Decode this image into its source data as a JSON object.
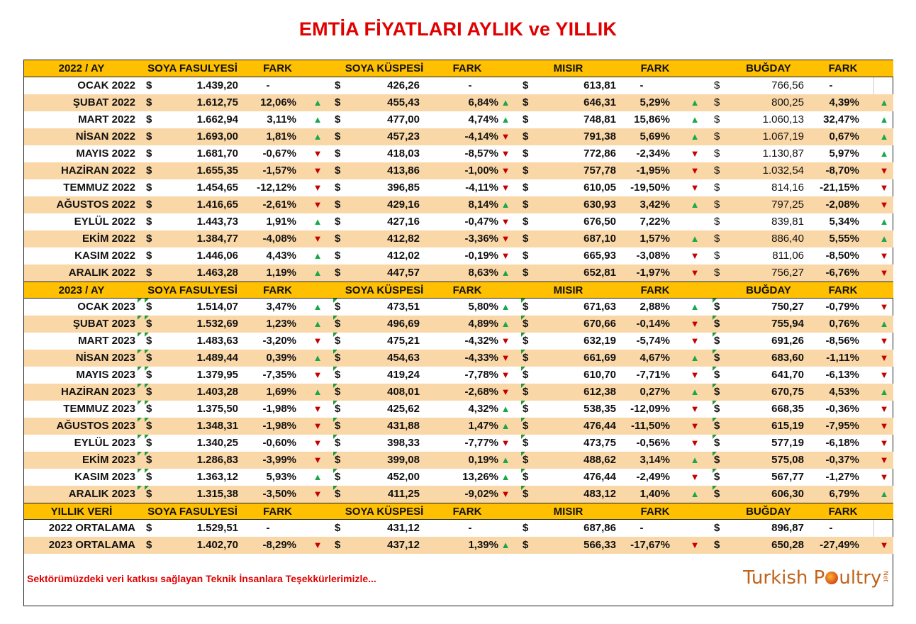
{
  "title": "EMTİA FİYATLARI AYLIK ve YILLIK",
  "headers_2022": [
    "2022 / AY",
    "SOYA FASULYESİ",
    "FARK",
    "SOYA KÜSPESİ",
    "FARK",
    "MISIR",
    "FARK",
    "BUĞDAY",
    "FARK"
  ],
  "headers_2023": [
    "2023 / AY",
    "SOYA FASULYESİ",
    "FARK",
    "SOYA KÜSPESİ",
    "FARK",
    "MISIR",
    "FARK",
    "BUĞDAY",
    "FARK"
  ],
  "headers_yearly": [
    "YILLIK VERİ",
    "SOYA FASULYESİ",
    "FARK",
    "SOYA KÜSPESİ",
    "FARK",
    "MISIR",
    "FARK",
    "BUĞDAY",
    "FARK"
  ],
  "currency_symbol": "$",
  "rows_2022": [
    {
      "month": "OCAK 2022",
      "sf": "1.439,20",
      "sf_d": "-",
      "sf_a": "",
      "sk": "426,26",
      "sk_d": "-",
      "sk_a": "",
      "m": "613,81",
      "m_d": "-",
      "m_a": "",
      "b": "766,56",
      "b_d": "-",
      "b_a": ""
    },
    {
      "month": "ŞUBAT 2022",
      "sf": "1.612,75",
      "sf_d": "12,06%",
      "sf_a": "up",
      "sk": "455,43",
      "sk_d": "6,84%",
      "sk_a": "up",
      "m": "646,31",
      "m_d": "5,29%",
      "m_a": "up",
      "b": "800,25",
      "b_d": "4,39%",
      "b_a": "up"
    },
    {
      "month": "MART 2022",
      "sf": "1.662,94",
      "sf_d": "3,11%",
      "sf_a": "up",
      "sk": "477,00",
      "sk_d": "4,74%",
      "sk_a": "up",
      "m": "748,81",
      "m_d": "15,86%",
      "m_a": "up",
      "b": "1.060,13",
      "b_d": "32,47%",
      "b_a": "up"
    },
    {
      "month": "NİSAN 2022",
      "sf": "1.693,00",
      "sf_d": "1,81%",
      "sf_a": "up",
      "sk": "457,23",
      "sk_d": "-4,14%",
      "sk_a": "down",
      "m": "791,38",
      "m_d": "5,69%",
      "m_a": "up",
      "b": "1.067,19",
      "b_d": "0,67%",
      "b_a": "up"
    },
    {
      "month": "MAYIS 2022",
      "sf": "1.681,70",
      "sf_d": "-0,67%",
      "sf_a": "down",
      "sk": "418,03",
      "sk_d": "-8,57%",
      "sk_a": "down",
      "m": "772,86",
      "m_d": "-2,34%",
      "m_a": "down",
      "b": "1.130,87",
      "b_d": "5,97%",
      "b_a": "up"
    },
    {
      "month": "HAZİRAN 2022",
      "sf": "1.655,35",
      "sf_d": "-1,57%",
      "sf_a": "down",
      "sk": "413,86",
      "sk_d": "-1,00%",
      "sk_a": "down",
      "m": "757,78",
      "m_d": "-1,95%",
      "m_a": "down",
      "b": "1.032,54",
      "b_d": "-8,70%",
      "b_a": "down"
    },
    {
      "month": "TEMMUZ 2022",
      "sf": "1.454,65",
      "sf_d": "-12,12%",
      "sf_a": "down",
      "sk": "396,85",
      "sk_d": "-4,11%",
      "sk_a": "down",
      "m": "610,05",
      "m_d": "-19,50%",
      "m_a": "down",
      "b": "814,16",
      "b_d": "-21,15%",
      "b_a": "down"
    },
    {
      "month": "AĞUSTOS 2022",
      "sf": "1.416,65",
      "sf_d": "-2,61%",
      "sf_a": "down",
      "sk": "429,16",
      "sk_d": "8,14%",
      "sk_a": "up",
      "m": "630,93",
      "m_d": "3,42%",
      "m_a": "up",
      "b": "797,25",
      "b_d": "-2,08%",
      "b_a": "down"
    },
    {
      "month": "EYLÜL 2022",
      "sf": "1.443,73",
      "sf_d": "1,91%",
      "sf_a": "up",
      "sk": "427,16",
      "sk_d": "-0,47%",
      "sk_a": "down",
      "m": "676,50",
      "m_d": "7,22%",
      "m_a": "",
      "b": "839,81",
      "b_d": "5,34%",
      "b_a": "up"
    },
    {
      "month": "EKİM 2022",
      "sf": "1.384,77",
      "sf_d": "-4,08%",
      "sf_a": "down",
      "sk": "412,82",
      "sk_d": "-3,36%",
      "sk_a": "down",
      "m": "687,10",
      "m_d": "1,57%",
      "m_a": "up",
      "b": "886,40",
      "b_d": "5,55%",
      "b_a": "up"
    },
    {
      "month": "KASIM 2022",
      "sf": "1.446,06",
      "sf_d": "4,43%",
      "sf_a": "up",
      "sk": "412,02",
      "sk_d": "-0,19%",
      "sk_a": "down",
      "m": "665,93",
      "m_d": "-3,08%",
      "m_a": "down",
      "b": "811,06",
      "b_d": "-8,50%",
      "b_a": "down"
    },
    {
      "month": "ARALIK 2022",
      "sf": "1.463,28",
      "sf_d": "1,19%",
      "sf_a": "up",
      "sk": "447,57",
      "sk_d": "8,63%",
      "sk_a": "up",
      "m": "652,81",
      "m_d": "-1,97%",
      "m_a": "down",
      "b": "756,27",
      "b_d": "-6,76%",
      "b_a": "down"
    }
  ],
  "rows_2023": [
    {
      "month": "OCAK 2023",
      "sf": "1.514,07",
      "sf_d": "3,47%",
      "sf_a": "up",
      "sk": "473,51",
      "sk_d": "5,80%",
      "sk_a": "up",
      "m": "671,63",
      "m_d": "2,88%",
      "m_a": "up",
      "b": "750,27",
      "b_d": "-0,79%",
      "b_a": "down"
    },
    {
      "month": "ŞUBAT 2023",
      "sf": "1.532,69",
      "sf_d": "1,23%",
      "sf_a": "up",
      "sk": "496,69",
      "sk_d": "4,89%",
      "sk_a": "up",
      "m": "670,66",
      "m_d": "-0,14%",
      "m_a": "down",
      "b": "755,94",
      "b_d": "0,76%",
      "b_a": "up"
    },
    {
      "month": "MART 2023",
      "sf": "1.483,63",
      "sf_d": "-3,20%",
      "sf_a": "down",
      "sk": "475,21",
      "sk_d": "-4,32%",
      "sk_a": "down",
      "m": "632,19",
      "m_d": "-5,74%",
      "m_a": "down",
      "b": "691,26",
      "b_d": "-8,56%",
      "b_a": "down"
    },
    {
      "month": "NİSAN 2023",
      "sf": "1.489,44",
      "sf_d": "0,39%",
      "sf_a": "up",
      "sk": "454,63",
      "sk_d": "-4,33%",
      "sk_a": "down",
      "m": "661,69",
      "m_d": "4,67%",
      "m_a": "up",
      "b": "683,60",
      "b_d": "-1,11%",
      "b_a": "down"
    },
    {
      "month": "MAYIS 2023",
      "sf": "1.379,95",
      "sf_d": "-7,35%",
      "sf_a": "down",
      "sk": "419,24",
      "sk_d": "-7,78%",
      "sk_a": "down",
      "m": "610,70",
      "m_d": "-7,71%",
      "m_a": "down",
      "b": "641,70",
      "b_d": "-6,13%",
      "b_a": "down"
    },
    {
      "month": "HAZİRAN 2023",
      "sf": "1.403,28",
      "sf_d": "1,69%",
      "sf_a": "up",
      "sk": "408,01",
      "sk_d": "-2,68%",
      "sk_a": "down",
      "m": "612,38",
      "m_d": "0,27%",
      "m_a": "up",
      "b": "670,75",
      "b_d": "4,53%",
      "b_a": "up"
    },
    {
      "month": "TEMMUZ 2023",
      "sf": "1.375,50",
      "sf_d": "-1,98%",
      "sf_a": "down",
      "sk": "425,62",
      "sk_d": "4,32%",
      "sk_a": "up",
      "m": "538,35",
      "m_d": "-12,09%",
      "m_a": "down",
      "b": "668,35",
      "b_d": "-0,36%",
      "b_a": "down"
    },
    {
      "month": "AĞUSTOS 2023",
      "sf": "1.348,31",
      "sf_d": "-1,98%",
      "sf_a": "down",
      "sk": "431,88",
      "sk_d": "1,47%",
      "sk_a": "up",
      "m": "476,44",
      "m_d": "-11,50%",
      "m_a": "down",
      "b": "615,19",
      "b_d": "-7,95%",
      "b_a": "down"
    },
    {
      "month": "EYLÜL 2023",
      "sf": "1.340,25",
      "sf_d": "-0,60%",
      "sf_a": "down",
      "sk": "398,33",
      "sk_d": "-7,77%",
      "sk_a": "down",
      "m": "473,75",
      "m_d": "-0,56%",
      "m_a": "down",
      "b": "577,19",
      "b_d": "-6,18%",
      "b_a": "down"
    },
    {
      "month": "EKİM 2023",
      "sf": "1.286,83",
      "sf_d": "-3,99%",
      "sf_a": "down",
      "sk": "399,08",
      "sk_d": "0,19%",
      "sk_a": "up",
      "m": "488,62",
      "m_d": "3,14%",
      "m_a": "up",
      "b": "575,08",
      "b_d": "-0,37%",
      "b_a": "down"
    },
    {
      "month": "KASIM 2023",
      "sf": "1.363,12",
      "sf_d": "5,93%",
      "sf_a": "up",
      "sk": "452,00",
      "sk_d": "13,26%",
      "sk_a": "up",
      "m": "476,44",
      "m_d": "-2,49%",
      "m_a": "down",
      "b": "567,77",
      "b_d": "-1,27%",
      "b_a": "down"
    },
    {
      "month": "ARALIK 2023",
      "sf": "1.315,38",
      "sf_d": "-3,50%",
      "sf_a": "down",
      "sk": "411,25",
      "sk_d": "-9,02%",
      "sk_a": "down",
      "m": "483,12",
      "m_d": "1,40%",
      "m_a": "up",
      "b": "606,30",
      "b_d": "6,79%",
      "b_a": "up"
    }
  ],
  "rows_yearly": [
    {
      "month": "2022 ORTALAMA",
      "sf": "1.529,51",
      "sf_d": "-",
      "sf_a": "",
      "sk": "431,12",
      "sk_d": "-",
      "sk_a": "",
      "m": "687,86",
      "m_d": "-",
      "m_a": "",
      "b": "896,87",
      "b_d": "-",
      "b_a": ""
    },
    {
      "month": "2023 ORTALAMA",
      "sf": "1.402,70",
      "sf_d": "-8,29%",
      "sf_a": "down",
      "sk": "437,12",
      "sk_d": "1,39%",
      "sk_a": "up",
      "m": "566,33",
      "m_d": "-17,67%",
      "m_a": "down",
      "b": "650,28",
      "b_d": "-27,49%",
      "b_a": "down"
    }
  ],
  "footer_note": "Sektörümüzdeki veri katkısı sağlayan Teknik İnsanlara Teşekkürlerimizle...",
  "logo": {
    "text_before": "Turkish P",
    "text_after": "ultry",
    "suffix": "Net"
  },
  "colors": {
    "header": "#fec001",
    "alt_row": "#fad7a7",
    "title": "#e00000",
    "up": "#18a84a",
    "down": "#c40000"
  }
}
